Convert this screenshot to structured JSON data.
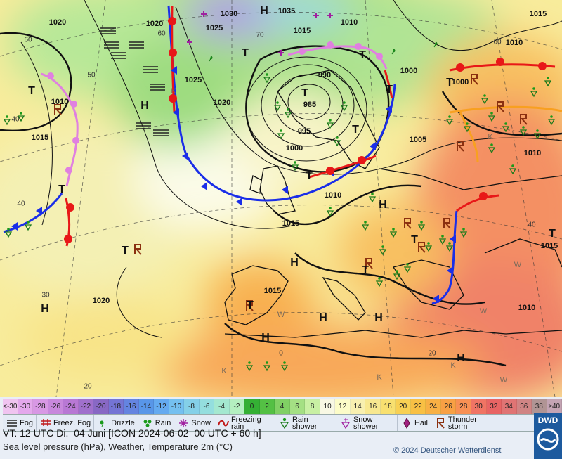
{
  "map": {
    "pressure_labels": [
      "1030",
      "1035",
      "1020",
      "1020",
      "1025",
      "1015",
      "1010",
      "1015",
      "1010",
      "1000",
      "1000",
      "1025",
      "1020",
      "990",
      "985",
      "995",
      "1000",
      "1005",
      "1010",
      "1010",
      "1015",
      "1010",
      "1015",
      "1015",
      "1020",
      "1010",
      "1015"
    ],
    "system_labels": [
      "H",
      "T",
      "T",
      "T",
      "T",
      "T",
      "T",
      "T",
      "H",
      "T",
      "H",
      "T",
      "T",
      "H",
      "T",
      "H",
      "T",
      "H",
      "H",
      "H",
      "H",
      "T",
      "T"
    ],
    "grid_labels": [
      "60",
      "50",
      "40",
      "40",
      "30",
      "20",
      "70",
      "60",
      "0",
      "20",
      "40",
      "60"
    ],
    "region_marks": [
      "K",
      "K",
      "W",
      "W",
      "W",
      "W",
      "K",
      "K",
      "K"
    ]
  },
  "color_scale": [
    {
      "label": "<-30",
      "color": "#f0c4f0"
    },
    {
      "label": "-30",
      "color": "#e4a8ec"
    },
    {
      "label": "-28",
      "color": "#d898e4"
    },
    {
      "label": "-26",
      "color": "#c888dc"
    },
    {
      "label": "-24",
      "color": "#b878d4"
    },
    {
      "label": "-22",
      "color": "#a070cc"
    },
    {
      "label": "-20",
      "color": "#8868c4"
    },
    {
      "label": "-18",
      "color": "#7474d4"
    },
    {
      "label": "-16",
      "color": "#6484e0"
    },
    {
      "label": "-14",
      "color": "#5896e8"
    },
    {
      "label": "-12",
      "color": "#64aaf0"
    },
    {
      "label": "-10",
      "color": "#74c0f0"
    },
    {
      "label": "-8",
      "color": "#84d0e8"
    },
    {
      "label": "-6",
      "color": "#94dede"
    },
    {
      "label": "-4",
      "color": "#a4e8d0"
    },
    {
      "label": "-2",
      "color": "#b4f0c0"
    },
    {
      "label": "0",
      "color": "#34b034"
    },
    {
      "label": "2",
      "color": "#54c044"
    },
    {
      "label": "4",
      "color": "#80d064"
    },
    {
      "label": "6",
      "color": "#a4e084"
    },
    {
      "label": "8",
      "color": "#c8f0a4"
    },
    {
      "label": "10",
      "color": "#f8f8e4"
    },
    {
      "label": "12",
      "color": "#fcfcc8"
    },
    {
      "label": "14",
      "color": "#f8f0b0"
    },
    {
      "label": "16",
      "color": "#f8e890"
    },
    {
      "label": "18",
      "color": "#f8e070"
    },
    {
      "label": "20",
      "color": "#f8d054"
    },
    {
      "label": "22",
      "color": "#f8c044"
    },
    {
      "label": "24",
      "color": "#f8b044"
    },
    {
      "label": "26",
      "color": "#f8a044"
    },
    {
      "label": "28",
      "color": "#f89054"
    },
    {
      "label": "30",
      "color": "#f07464"
    },
    {
      "label": "32",
      "color": "#e86464"
    },
    {
      "label": "34",
      "color": "#e07474"
    },
    {
      "label": "36",
      "color": "#d08484"
    },
    {
      "label": "38",
      "color": "#b09494"
    },
    {
      "label": "≥40",
      "color": "#c4a4b4"
    }
  ],
  "legend": [
    "Fog",
    "Freez. Fog",
    "Drizzle",
    "Rain",
    "Snow",
    "Freezing rain",
    "Rain shower",
    "Snow shower",
    "Hail",
    "Thunder storm"
  ],
  "footer": {
    "valid_time": "VT: 12 UTC Di.  04 Juni [ICON 2024-06-02  00 UTC + 60 h]",
    "description": "Sea level pressure (hPa), Weather, Temperature 2m (°C)",
    "copyright": "© 2024 Deutscher Wetterdienst",
    "logo": "DWD"
  }
}
